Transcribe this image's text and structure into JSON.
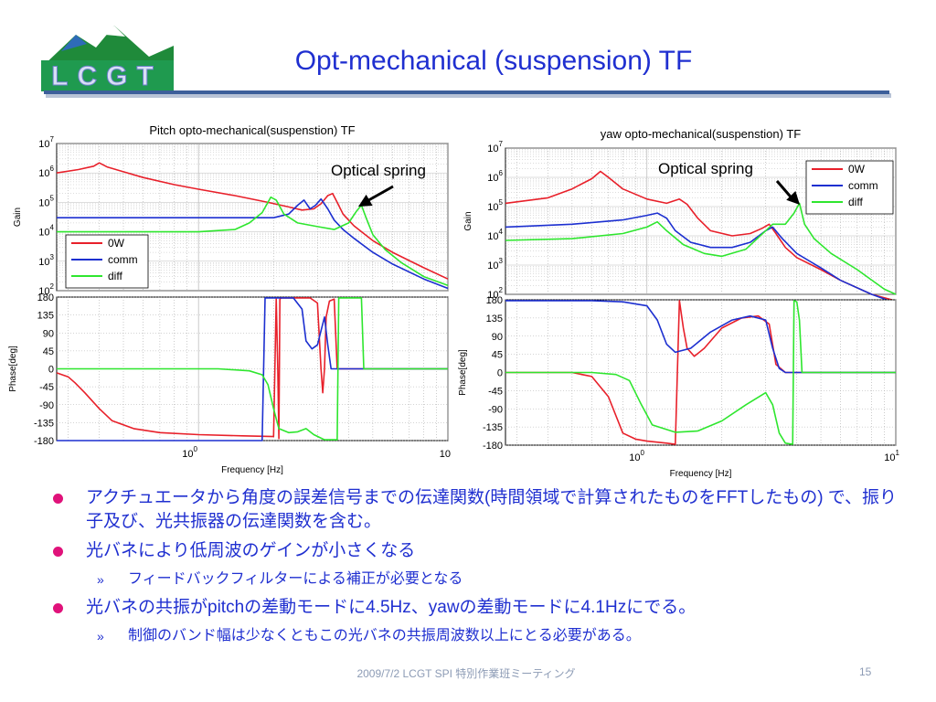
{
  "slide": {
    "title": "Opt-mechanical (suspension) TF",
    "logo_text": "LCGT",
    "footer": "2009/7/2 LCGT SPI 特別作業班ミーティング",
    "page_number": "15",
    "colors": {
      "title": "#1f2fd0",
      "bullet_dot": "#e0127a",
      "rule": "#3d5f9a"
    }
  },
  "bullets": [
    {
      "text": "アクチュエータから角度の誤差信号までの伝達関数(時間領域で計算されたものをFFTしたもの) で、振り子及び、光共振器の伝達関数を含む。",
      "sub": []
    },
    {
      "text": "光バネにより低周波のゲインが小さくなる",
      "sub": [
        "フィードバックフィルターによる補正が必要となる"
      ]
    },
    {
      "text": "光バネの共振がpitchの差動モードに4.5Hz、yawの差動モードに4.1Hzにでる。",
      "sub": [
        "制御のバンド幅は少なくともこの光バネの共振周波数以上にとる必要がある。"
      ]
    }
  ],
  "chart_data": [
    {
      "type": "line",
      "title": "Pitch opto-mechanical(suspenstion) TF",
      "xlabel": "Frequency [Hz]",
      "x_scale": "log",
      "xlim": [
        0.27,
        10
      ],
      "x_ticks": [
        "10^0",
        "10"
      ],
      "annotation": "Optical spring",
      "legend": {
        "entries": [
          "0W",
          "comm",
          "diff"
        ],
        "placement": "gain-lower-left"
      },
      "colors": {
        "0W": "#e8202a",
        "comm": "#1c2fd0",
        "diff": "#2ee62e"
      },
      "gain": {
        "ylabel": "Gain",
        "y_scale": "log",
        "ylim": [
          100,
          10000000
        ],
        "y_ticks": [
          "10^2",
          "10^3",
          "10^4",
          "10^5",
          "10^6",
          "10^7"
        ],
        "series": [
          {
            "name": "0W",
            "x": [
              0.27,
              0.33,
              0.38,
              0.4,
              0.43,
              0.5,
              0.6,
              0.8,
              1.0,
              1.4,
              1.9,
              2.3,
              2.6,
              2.9,
              3.1,
              3.3,
              3.45,
              3.6,
              3.8,
              4.2,
              5.0,
              6.0,
              8.0,
              10.0
            ],
            "y": [
              1000000,
              1300000,
              1700000,
              2200000,
              1600000,
              1100000,
              700000,
              400000,
              280000,
              170000,
              100000,
              70000,
              55000,
              60000,
              90000,
              170000,
              200000,
              100000,
              40000,
              16000,
              5000,
              2000,
              600,
              250
            ]
          },
          {
            "name": "comm",
            "x": [
              0.27,
              0.5,
              1.0,
              1.5,
              2.0,
              2.3,
              2.5,
              2.65,
              2.8,
              2.95,
              3.1,
              3.3,
              3.5,
              3.8,
              4.2,
              5.0,
              6.0,
              8.0,
              10.0
            ],
            "y": [
              30000,
              30000,
              30000,
              30000,
              30000,
              40000,
              80000,
              120000,
              60000,
              80000,
              130000,
              60000,
              25000,
              12000,
              6000,
              2000,
              800,
              250,
              120
            ]
          },
          {
            "name": "diff",
            "x": [
              0.27,
              0.5,
              1.0,
              1.4,
              1.6,
              1.8,
              1.95,
              2.05,
              2.2,
              2.5,
              3.0,
              3.5,
              4.0,
              4.3,
              4.5,
              4.7,
              5.0,
              5.6,
              6.5,
              8.0,
              10.0
            ],
            "y": [
              10000,
              10000,
              10000,
              12000,
              20000,
              45000,
              150000,
              120000,
              40000,
              20000,
              15000,
              12000,
              20000,
              50000,
              80000,
              30000,
              8000,
              2500,
              900,
              300,
              150
            ]
          }
        ]
      },
      "phase": {
        "ylabel": "Phase[deg]",
        "ylim": [
          -180,
          180
        ],
        "y_ticks": [
          180,
          135,
          90,
          45,
          0,
          -45,
          -90,
          -135,
          -180
        ],
        "series": [
          {
            "name": "0W",
            "x": [
              0.27,
              0.3,
              0.32,
              0.35,
              0.4,
              0.45,
              0.55,
              0.7,
              1.0,
              1.5,
              2.0,
              2.05,
              2.08,
              2.1,
              2.12,
              2.15,
              2.2,
              2.5,
              2.8,
              3.0,
              3.1,
              3.15,
              3.2,
              3.25,
              3.35,
              3.5,
              3.6,
              10.0
            ],
            "y": [
              -10,
              -20,
              -35,
              -60,
              -100,
              -130,
              -150,
              -160,
              -165,
              -168,
              -170,
              175,
              0,
              -175,
              175,
              178,
              178,
              178,
              178,
              165,
              0,
              -60,
              0,
              130,
              170,
              175,
              0,
              0
            ]
          },
          {
            "name": "comm",
            "x": [
              0.27,
              0.5,
              1.0,
              1.5,
              1.8,
              1.85,
              2.0,
              2.4,
              2.6,
              2.7,
              2.85,
              3.0,
              3.2,
              3.3,
              3.4,
              10.0
            ],
            "y": [
              -180,
              -180,
              -180,
              -180,
              -180,
              178,
              178,
              178,
              150,
              70,
              50,
              60,
              130,
              60,
              0,
              0
            ]
          },
          {
            "name": "diff",
            "x": [
              0.27,
              0.6,
              1.2,
              1.6,
              1.8,
              1.9,
              2.0,
              2.1,
              2.3,
              2.5,
              2.7,
              2.9,
              3.2,
              3.6,
              3.65,
              3.8,
              4.2,
              4.5,
              4.6,
              10.0
            ],
            "y": [
              0,
              0,
              0,
              -5,
              -15,
              -40,
              -100,
              -150,
              -160,
              -158,
              -150,
              -165,
              -178,
              -178,
              178,
              178,
              178,
              178,
              0,
              0
            ]
          }
        ]
      }
    },
    {
      "type": "line",
      "title": "yaw opto-mechanical(suspenstion) TF",
      "xlabel": "Frequency [Hz]",
      "x_scale": "log",
      "xlim": [
        0.27,
        10
      ],
      "x_ticks": [
        "10^0",
        "10^1"
      ],
      "annotation": "Optical spring",
      "legend": {
        "entries": [
          "0W",
          "comm",
          "diff"
        ],
        "placement": "top-right"
      },
      "colors": {
        "0W": "#e8202a",
        "comm": "#1c2fd0",
        "diff": "#2ee62e"
      },
      "gain": {
        "ylabel": "Gain",
        "y_scale": "log",
        "ylim": [
          100,
          10000000
        ],
        "y_ticks": [
          "10^2",
          "10^3",
          "10^4",
          "10^5",
          "10^6",
          "10^7"
        ],
        "series": [
          {
            "name": "0W",
            "x": [
              0.27,
              0.4,
              0.5,
              0.6,
              0.65,
              0.7,
              0.8,
              1.0,
              1.2,
              1.35,
              1.45,
              1.6,
              1.8,
              2.2,
              2.6,
              2.9,
              3.1,
              3.3,
              3.6,
              4.0,
              5.0,
              6.0,
              8.0,
              10.0
            ],
            "y": [
              130000,
              200000,
              400000,
              900000,
              1600000,
              1000000,
              400000,
              180000,
              130000,
              180000,
              120000,
              40000,
              15000,
              10000,
              12000,
              18000,
              25000,
              12000,
              4000,
              1800,
              700,
              300,
              100,
              60
            ]
          },
          {
            "name": "comm",
            "x": [
              0.27,
              0.5,
              0.8,
              1.0,
              1.1,
              1.2,
              1.3,
              1.5,
              1.8,
              2.2,
              2.6,
              3.0,
              3.2,
              3.5,
              4.0,
              5.0,
              6.0,
              8.0,
              10.0
            ],
            "y": [
              20000,
              25000,
              35000,
              50000,
              60000,
              40000,
              15000,
              6000,
              4000,
              4000,
              6000,
              15000,
              20000,
              8000,
              2500,
              800,
              300,
              100,
              50
            ]
          },
          {
            "name": "diff",
            "x": [
              0.27,
              0.5,
              0.8,
              1.0,
              1.1,
              1.2,
              1.4,
              1.7,
              2.0,
              2.5,
              3.0,
              3.2,
              3.6,
              3.9,
              4.1,
              4.3,
              4.7,
              5.5,
              7.0,
              9.0,
              10.0
            ],
            "y": [
              7000,
              8000,
              12000,
              20000,
              30000,
              15000,
              5000,
              2500,
              2000,
              3500,
              15000,
              25000,
              25000,
              60000,
              130000,
              25000,
              8000,
              2500,
              700,
              150,
              100
            ]
          }
        ]
      },
      "phase": {
        "ylabel": "Phase[deg]",
        "ylim": [
          -180,
          180
        ],
        "y_ticks": [
          180,
          135,
          90,
          45,
          0,
          -45,
          -90,
          -135,
          -180
        ],
        "series": [
          {
            "name": "0W",
            "x": [
              0.27,
              0.5,
              0.6,
              0.7,
              0.8,
              0.9,
              1.0,
              1.2,
              1.3,
              1.35,
              1.4,
              1.45,
              1.55,
              1.7,
              2.0,
              2.4,
              2.8,
              3.1,
              3.3,
              3.6,
              10.0
            ],
            "y": [
              0,
              0,
              -10,
              -60,
              -150,
              -165,
              -170,
              -175,
              -178,
              178,
              110,
              60,
              40,
              60,
              110,
              135,
              140,
              120,
              20,
              0,
              0
            ]
          },
          {
            "name": "comm",
            "x": [
              0.27,
              0.6,
              0.8,
              1.0,
              1.1,
              1.2,
              1.3,
              1.5,
              1.8,
              2.2,
              2.6,
              3.0,
              3.2,
              3.4,
              3.6,
              10.0
            ],
            "y": [
              178,
              178,
              175,
              165,
              130,
              70,
              50,
              60,
              100,
              130,
              140,
              130,
              60,
              10,
              0,
              0
            ]
          },
          {
            "name": "diff",
            "x": [
              0.27,
              0.6,
              0.75,
              0.85,
              0.95,
              1.05,
              1.3,
              1.6,
              2.0,
              2.5,
              3.0,
              3.2,
              3.4,
              3.6,
              3.85,
              3.9,
              4.0,
              4.1,
              4.2,
              10.0
            ],
            "y": [
              0,
              0,
              -5,
              -20,
              -80,
              -130,
              -148,
              -145,
              -120,
              -80,
              -50,
              -80,
              -150,
              -175,
              -178,
              178,
              175,
              130,
              0,
              0
            ]
          }
        ]
      }
    }
  ]
}
